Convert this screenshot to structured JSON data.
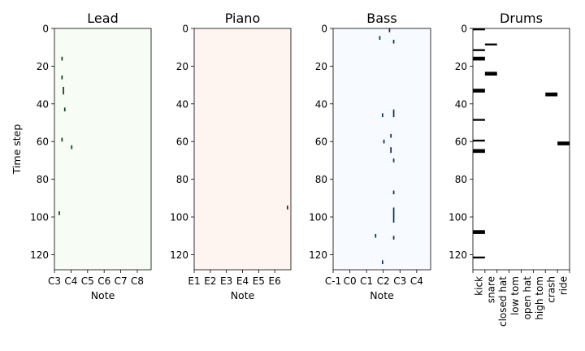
{
  "chart_data": [
    {
      "type": "heatmap",
      "title": "Lead",
      "xlabel": "Note",
      "ylabel": "Time step",
      "ylim": [
        0,
        128
      ],
      "yticks": [
        0,
        20,
        40,
        60,
        80,
        100,
        120
      ],
      "xlim": [
        0,
        70
      ],
      "xticks": [
        {
          "label": "C3",
          "value": 0
        },
        {
          "label": "C4",
          "value": 12
        },
        {
          "label": "C5",
          "value": 24
        },
        {
          "label": "C6",
          "value": 36
        },
        {
          "label": "C7",
          "value": 48
        },
        {
          "label": "C8",
          "value": 60
        }
      ],
      "background_color": "#f7fcf5",
      "note_color": "#00441b",
      "notes": [
        {
          "pitch": 5,
          "start": 15,
          "end": 17
        },
        {
          "pitch": 5,
          "start": 25,
          "end": 27
        },
        {
          "pitch": 6,
          "start": 31,
          "end": 35
        },
        {
          "pitch": 7,
          "start": 42,
          "end": 44
        },
        {
          "pitch": 5,
          "start": 58,
          "end": 60
        },
        {
          "pitch": 12,
          "start": 62,
          "end": 64
        },
        {
          "pitch": 3,
          "start": 97,
          "end": 99
        }
      ]
    },
    {
      "type": "heatmap",
      "title": "Piano",
      "xlabel": "Note",
      "ylabel": "",
      "ylim": [
        0,
        128
      ],
      "yticks": [
        0,
        20,
        40,
        60,
        80,
        100,
        120
      ],
      "xlim": [
        0,
        72
      ],
      "xticks": [
        {
          "label": "E1",
          "value": 0
        },
        {
          "label": "E2",
          "value": 12
        },
        {
          "label": "E3",
          "value": 24
        },
        {
          "label": "E4",
          "value": 36
        },
        {
          "label": "E5",
          "value": 48
        },
        {
          "label": "E6",
          "value": 60
        }
      ],
      "background_color": "#fff5f0",
      "note_color": "#67000d",
      "notes": [
        {
          "pitch": 69,
          "start": 94,
          "end": 96
        }
      ]
    },
    {
      "type": "heatmap",
      "title": "Bass",
      "xlabel": "Note",
      "ylabel": "",
      "ylim": [
        0,
        128
      ],
      "yticks": [
        0,
        20,
        40,
        60,
        80,
        100,
        120
      ],
      "xlim": [
        0,
        70
      ],
      "xticks": [
        {
          "label": "C-1",
          "value": 0
        },
        {
          "label": "C0",
          "value": 12
        },
        {
          "label": "C1",
          "value": 24
        },
        {
          "label": "C2",
          "value": 36
        },
        {
          "label": "C3",
          "value": 48
        },
        {
          "label": "C4",
          "value": 60
        }
      ],
      "background_color": "#f7fbff",
      "note_color": "#08306b",
      "notes": [
        {
          "pitch": 40,
          "start": 0,
          "end": 2
        },
        {
          "pitch": 33,
          "start": 4,
          "end": 6
        },
        {
          "pitch": 43,
          "start": 6,
          "end": 8
        },
        {
          "pitch": 43,
          "start": 43,
          "end": 47
        },
        {
          "pitch": 35,
          "start": 45,
          "end": 47
        },
        {
          "pitch": 41,
          "start": 56,
          "end": 58
        },
        {
          "pitch": 36,
          "start": 59,
          "end": 61
        },
        {
          "pitch": 41,
          "start": 63,
          "end": 66
        },
        {
          "pitch": 43,
          "start": 69,
          "end": 71
        },
        {
          "pitch": 43,
          "start": 86,
          "end": 88
        },
        {
          "pitch": 43,
          "start": 95,
          "end": 103
        },
        {
          "pitch": 30,
          "start": 109,
          "end": 111
        },
        {
          "pitch": 43,
          "start": 110,
          "end": 112
        },
        {
          "pitch": 35,
          "start": 123,
          "end": 125
        }
      ]
    },
    {
      "type": "heatmap",
      "title": "Drums",
      "xlabel": "",
      "ylabel": "",
      "ylim": [
        0,
        128
      ],
      "yticks": [
        0,
        20,
        40,
        60,
        80,
        100,
        120
      ],
      "xlim": [
        0,
        8
      ],
      "categories": [
        "kick",
        "snare",
        "closed hat",
        "low tom",
        "open hat",
        "high tom",
        "crash",
        "ride"
      ],
      "background_color": "#ffffff",
      "note_color": "#000000",
      "hits": [
        {
          "drum": "kick",
          "start": 0,
          "end": 1
        },
        {
          "drum": "kick",
          "start": 11,
          "end": 12
        },
        {
          "drum": "kick",
          "start": 15,
          "end": 17
        },
        {
          "drum": "kick",
          "start": 32,
          "end": 34
        },
        {
          "drum": "kick",
          "start": 48,
          "end": 49
        },
        {
          "drum": "kick",
          "start": 59,
          "end": 60
        },
        {
          "drum": "kick",
          "start": 64,
          "end": 66
        },
        {
          "drum": "kick",
          "start": 107,
          "end": 109
        },
        {
          "drum": "kick",
          "start": 121,
          "end": 122
        },
        {
          "drum": "snare",
          "start": 8,
          "end": 9
        },
        {
          "drum": "snare",
          "start": 23,
          "end": 25
        },
        {
          "drum": "crash",
          "start": 34,
          "end": 36
        },
        {
          "drum": "ride",
          "start": 60,
          "end": 62
        }
      ]
    }
  ]
}
